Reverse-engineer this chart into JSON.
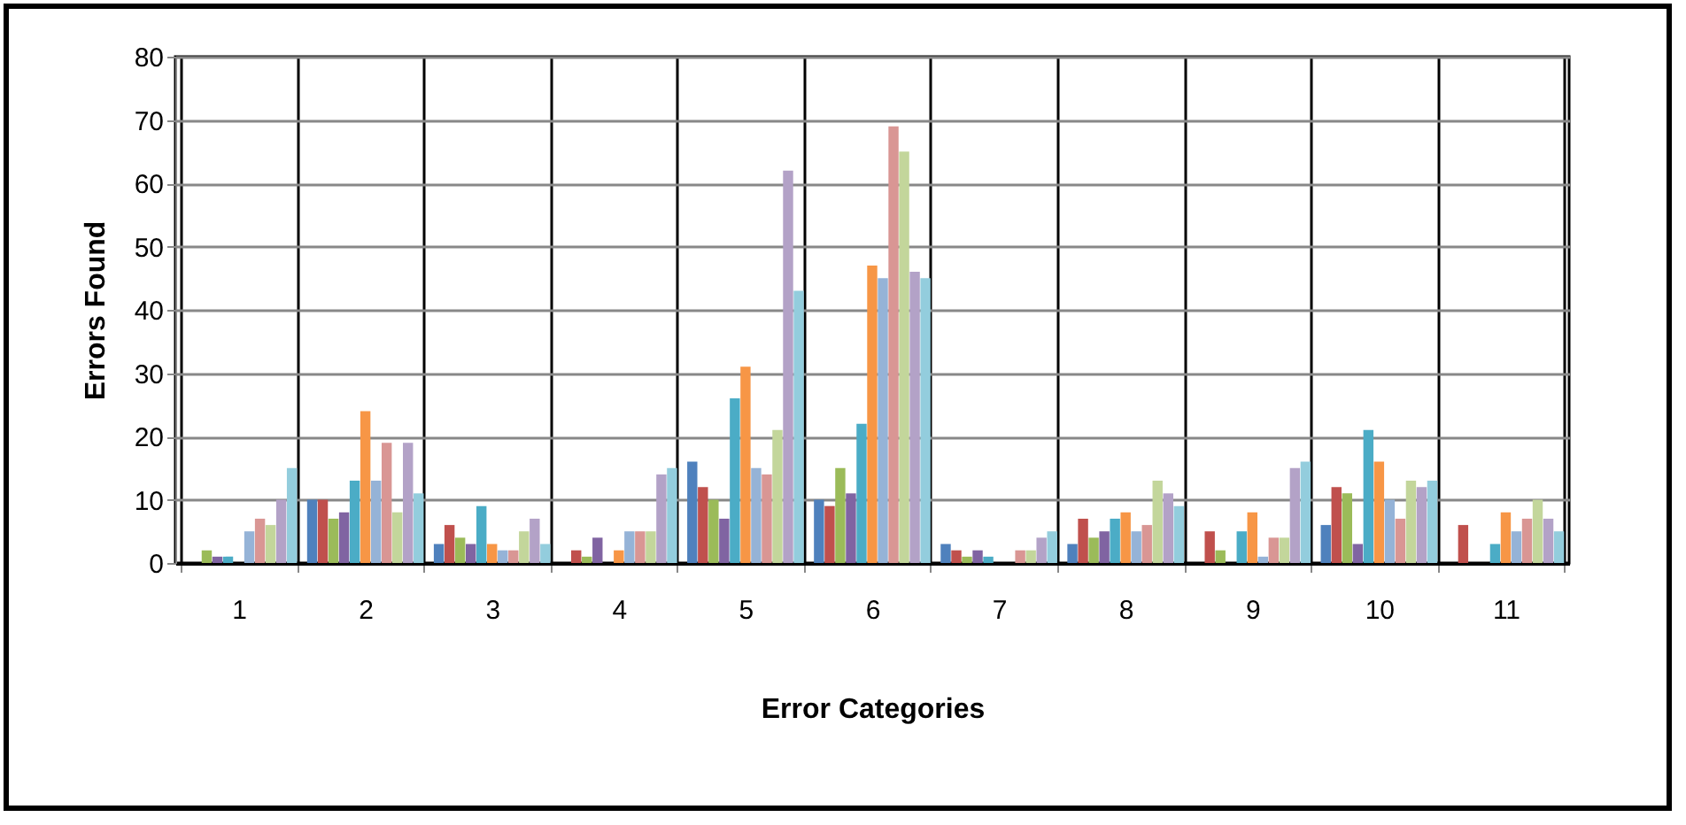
{
  "chart_data": {
    "type": "bar",
    "xlabel": "Error Categories",
    "ylabel": "Errors Found",
    "categories": [
      "1",
      "2",
      "3",
      "4",
      "5",
      "6",
      "7",
      "8",
      "9",
      "10",
      "11"
    ],
    "series": [
      {
        "color": "#4f81bd",
        "values": [
          0,
          10,
          3,
          0,
          16,
          10,
          3,
          3,
          0,
          6,
          0
        ]
      },
      {
        "color": "#c0504d",
        "values": [
          0,
          10,
          6,
          2,
          12,
          9,
          2,
          7,
          5,
          12,
          6
        ]
      },
      {
        "color": "#9bbb59",
        "values": [
          2,
          7,
          4,
          1,
          10,
          15,
          1,
          4,
          2,
          11,
          0
        ]
      },
      {
        "color": "#8064a2",
        "values": [
          1,
          8,
          3,
          4,
          7,
          11,
          2,
          5,
          0,
          3,
          0
        ]
      },
      {
        "color": "#4bacc6",
        "values": [
          1,
          13,
          9,
          0,
          26,
          22,
          1,
          7,
          5,
          21,
          3
        ]
      },
      {
        "color": "#f79646",
        "values": [
          0,
          24,
          3,
          2,
          31,
          47,
          0,
          8,
          8,
          16,
          8
        ]
      },
      {
        "color": "#95b3d7",
        "values": [
          5,
          13,
          2,
          5,
          15,
          45,
          0,
          5,
          1,
          10,
          5
        ]
      },
      {
        "color": "#d99694",
        "values": [
          7,
          19,
          2,
          5,
          14,
          69,
          2,
          6,
          4,
          7,
          7
        ]
      },
      {
        "color": "#c3d69b",
        "values": [
          6,
          8,
          5,
          5,
          21,
          65,
          2,
          13,
          4,
          13,
          10
        ]
      },
      {
        "color": "#b3a2c7",
        "values": [
          10,
          19,
          7,
          14,
          62,
          46,
          4,
          11,
          15,
          12,
          7
        ]
      },
      {
        "color": "#93cddd",
        "values": [
          15,
          11,
          3,
          15,
          43,
          45,
          5,
          9,
          16,
          13,
          5
        ]
      }
    ],
    "ylim": [
      0,
      80
    ],
    "yticks": [
      0,
      10,
      20,
      30,
      40,
      50,
      60,
      70,
      80
    ],
    "grid": true,
    "legend": false
  }
}
